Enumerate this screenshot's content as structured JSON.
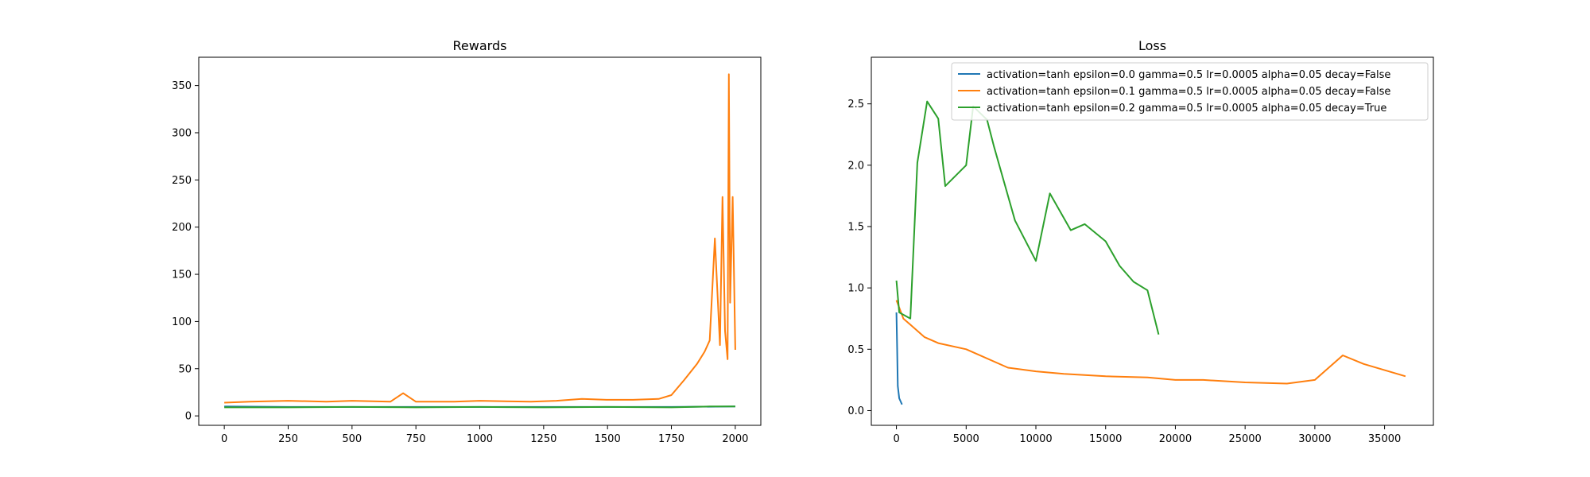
{
  "chart_data": [
    {
      "type": "line",
      "title": "Rewards",
      "xlabel": "",
      "ylabel": "",
      "xlim": [
        -100,
        2100
      ],
      "ylim": [
        -10,
        380
      ],
      "xticks": [
        0,
        250,
        500,
        750,
        1000,
        1250,
        1500,
        1750,
        2000
      ],
      "yticks": [
        0,
        50,
        100,
        150,
        200,
        250,
        300,
        350
      ],
      "grid": false,
      "series": [
        {
          "color": "#1f77b4",
          "x": [
            0,
            250,
            500,
            750,
            1000,
            1250,
            1500,
            1750,
            2000
          ],
          "values": [
            10,
            9.5,
            9.5,
            9.5,
            9.5,
            9.5,
            9.5,
            9.5,
            10
          ]
        },
        {
          "color": "#ff7f0e",
          "x": [
            0,
            100,
            250,
            400,
            500,
            650,
            700,
            750,
            900,
            1000,
            1200,
            1300,
            1400,
            1500,
            1600,
            1700,
            1750,
            1800,
            1850,
            1880,
            1900,
            1920,
            1940,
            1950,
            1960,
            1970,
            1975,
            1980,
            1990,
            2000
          ],
          "values": [
            14,
            15,
            16,
            15,
            16,
            15,
            24,
            15,
            15,
            16,
            15,
            16,
            18,
            17,
            17,
            18,
            22,
            38,
            55,
            68,
            80,
            188,
            75,
            232,
            90,
            60,
            362,
            120,
            232,
            70
          ]
        },
        {
          "color": "#2ca02c",
          "x": [
            0,
            250,
            500,
            750,
            1000,
            1250,
            1500,
            1750,
            1900,
            2000
          ],
          "values": [
            9,
            9,
            9.5,
            9,
            9.5,
            9,
            9.5,
            9,
            10,
            10
          ]
        }
      ]
    },
    {
      "type": "line",
      "title": "Loss",
      "xlabel": "",
      "ylabel": "",
      "xlim": [
        -1800,
        38500
      ],
      "ylim": [
        -0.12,
        2.88
      ],
      "xticks": [
        0,
        5000,
        10000,
        15000,
        20000,
        25000,
        30000,
        35000
      ],
      "ytick_labels": [
        "0.0",
        "0.5",
        "1.0",
        "1.5",
        "2.0",
        "2.5"
      ],
      "yticks": [
        0,
        0.5,
        1.0,
        1.5,
        2.0,
        2.5
      ],
      "grid": false,
      "legend": "top-right",
      "series": [
        {
          "name": "activation=tanh epsilon=0.0 gamma=0.5 lr=0.0005 alpha=0.05 decay=False",
          "color": "#1f77b4",
          "x": [
            0,
            50,
            100,
            200,
            400
          ],
          "values": [
            0.8,
            0.5,
            0.2,
            0.1,
            0.05
          ]
        },
        {
          "name": "activation=tanh epsilon=0.1 gamma=0.5 lr=0.0005 alpha=0.05 decay=False",
          "color": "#ff7f0e",
          "x": [
            0,
            500,
            1000,
            2000,
            3000,
            5000,
            8000,
            10000,
            12000,
            15000,
            18000,
            20000,
            22000,
            25000,
            28000,
            30000,
            32000,
            33500,
            35000,
            36500
          ],
          "values": [
            0.9,
            0.75,
            0.7,
            0.6,
            0.55,
            0.5,
            0.35,
            0.32,
            0.3,
            0.28,
            0.27,
            0.25,
            0.25,
            0.23,
            0.22,
            0.25,
            0.45,
            0.38,
            0.33,
            0.28
          ]
        },
        {
          "name": "activation=tanh epsilon=0.2 gamma=0.5 lr=0.0005 alpha=0.05 decay=True",
          "color": "#2ca02c",
          "x": [
            0,
            200,
            1000,
            1500,
            2200,
            3000,
            3500,
            5000,
            5500,
            6500,
            7000,
            8500,
            10000,
            11000,
            12500,
            13500,
            15000,
            16000,
            17000,
            18000,
            18800
          ],
          "values": [
            1.06,
            0.8,
            0.75,
            2.02,
            2.52,
            2.38,
            1.83,
            2.0,
            2.48,
            2.37,
            2.15,
            1.55,
            1.22,
            1.77,
            1.47,
            1.52,
            1.38,
            1.18,
            1.05,
            0.98,
            0.62
          ]
        }
      ]
    }
  ]
}
